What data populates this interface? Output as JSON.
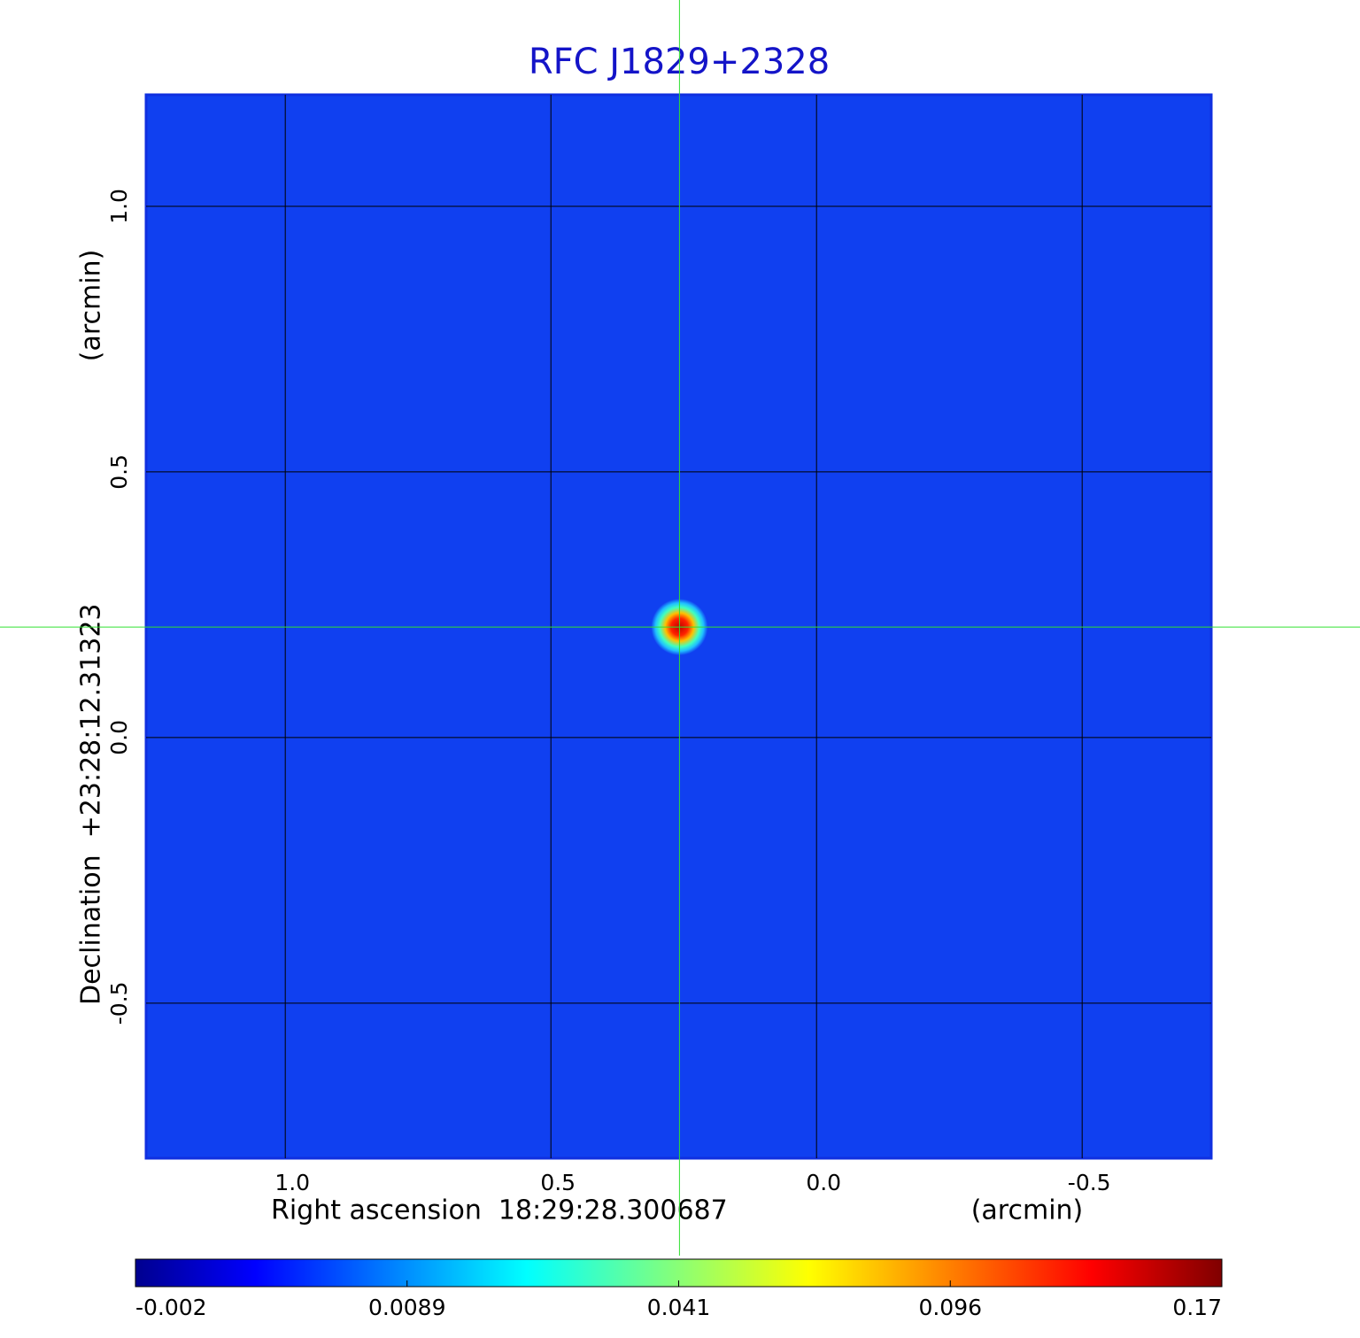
{
  "chart_data": {
    "type": "image",
    "title": "RFC J1829+2328",
    "x_label": "Right ascension  18:29:28.300687",
    "x_unit": "(arcmin)",
    "y_label": "Declination  +23:28:12.31323",
    "y_unit": "(arcmin)",
    "xlim": [
      1.262,
      -0.743
    ],
    "ylim": [
      -0.792,
      1.21
    ],
    "xticks": [
      {
        "value": 1,
        "label": "1.0"
      },
      0.5,
      {
        "value": 0,
        "label": "0.0"
      },
      -0.5
    ],
    "yticks": [
      {
        "value": 1,
        "label": "1.0"
      },
      0.5,
      {
        "value": 0,
        "label": "0.0"
      },
      -0.5
    ],
    "grid": true,
    "colormap": "jet",
    "source": {
      "x": 0.258,
      "y": 0.208,
      "peak": 0.17
    },
    "crosshair": true,
    "colorbar": {
      "lim": [
        -0.002,
        0.17
      ],
      "ticks": [
        -0.002,
        0.0089,
        0.041,
        0.096,
        0.17
      ]
    }
  }
}
